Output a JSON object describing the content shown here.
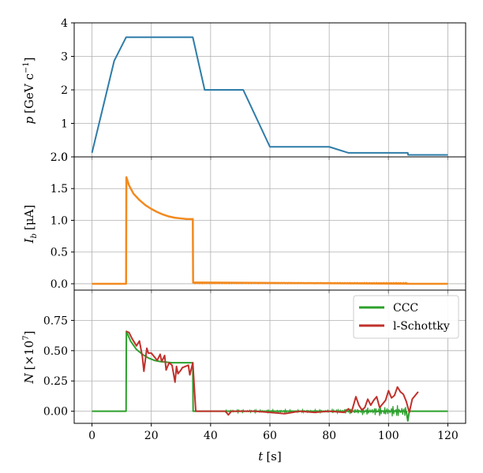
{
  "colors": {
    "momentum": "#2e7ca8",
    "current": "#f28a1f",
    "ccc": "#2ca02c",
    "schottky": "#c0312c",
    "grid": "#b0b0b0"
  },
  "chart_data": [
    {
      "type": "line",
      "id": "momentum",
      "ylabel": "p [GeV c^-1]",
      "ylabel_text": "p [GeV c⁻¹]",
      "xlim": [
        -6,
        126
      ],
      "ylim": [
        0,
        4
      ],
      "yticks": [
        0,
        1,
        2,
        3,
        4
      ],
      "ytick_labels": [
        "0",
        "1",
        "2",
        "3",
        "4"
      ],
      "series": [
        {
          "color_key": "momentum",
          "x": [
            0,
            7.5,
            11.5,
            34,
            38,
            51,
            60,
            80,
            86.5,
            106.5,
            106.6,
            120
          ],
          "y": [
            0.12,
            2.87,
            3.57,
            3.57,
            2.0,
            2.0,
            0.3,
            0.3,
            0.12,
            0.12,
            0.06,
            0.06
          ]
        }
      ]
    },
    {
      "type": "line",
      "id": "current",
      "ylabel": "I_b [μA]",
      "xlim": [
        -6,
        126
      ],
      "ylim": [
        -0.1,
        2.0
      ],
      "yticks": [
        0.0,
        0.5,
        1.0,
        1.5,
        2.0
      ],
      "ytick_labels": [
        "0.0",
        "0.5",
        "1.0",
        "1.5",
        "2.0"
      ],
      "series": [
        {
          "color_key": "current",
          "x": [
            0,
            11.5,
            11.6,
            12.5,
            14,
            16,
            18,
            20,
            22,
            24,
            26,
            28,
            30,
            32,
            34,
            34.1,
            34.2,
            106.5,
            106.6,
            120
          ],
          "y": [
            0,
            0,
            1.68,
            1.55,
            1.42,
            1.32,
            1.24,
            1.18,
            1.13,
            1.09,
            1.06,
            1.04,
            1.03,
            1.02,
            1.02,
            0.02,
            0.02,
            0.0,
            0.0,
            0.0
          ]
        }
      ]
    },
    {
      "type": "line",
      "id": "particles",
      "ylabel": "N [×10^7]",
      "xlabel": "t [s]",
      "xlim": [
        -6,
        126
      ],
      "ylim": [
        -0.1,
        1.0
      ],
      "yticks": [
        0.0,
        0.25,
        0.5,
        0.75
      ],
      "ytick_labels": [
        "0.00",
        "0.25",
        "0.50",
        "0.75"
      ],
      "xticks": [
        0,
        20,
        40,
        60,
        80,
        100,
        120
      ],
      "xtick_labels": [
        "0",
        "20",
        "40",
        "60",
        "80",
        "100",
        "120"
      ],
      "legend_position": "top-right",
      "series": [
        {
          "name": "CCC",
          "color_key": "ccc",
          "x": [
            0,
            11.5,
            11.6,
            13,
            15,
            17,
            19,
            21,
            23,
            25,
            27,
            29,
            31,
            34,
            34.1,
            50,
            60,
            70,
            80,
            90,
            100,
            106,
            106.5,
            107,
            120
          ],
          "y": [
            0,
            0,
            0.66,
            0.58,
            0.51,
            0.47,
            0.44,
            0.42,
            0.41,
            0.405,
            0.4,
            0.4,
            0.4,
            0.4,
            0.0,
            0.0,
            0.0,
            0.0,
            0.0,
            0.0,
            0.0,
            0.0,
            -0.08,
            0.0,
            0.0
          ]
        },
        {
          "name": "l-Schottky",
          "color_key": "schottky",
          "x": [
            11.5,
            12.5,
            13.5,
            15,
            16,
            17,
            17.5,
            18.5,
            19,
            20,
            21,
            22,
            23,
            23.5,
            24.5,
            25,
            26,
            27,
            28,
            28.5,
            29,
            30,
            30.5,
            31.5,
            32.5,
            33,
            34,
            35,
            37,
            45,
            46,
            47,
            50,
            55,
            60,
            65,
            70,
            75,
            80,
            85,
            86.5,
            87.5,
            89,
            90,
            91,
            92,
            93,
            94,
            95,
            96,
            97,
            98,
            99,
            100,
            101,
            102,
            103,
            104,
            105,
            106,
            107,
            108,
            110
          ],
          "y": [
            0.66,
            0.65,
            0.6,
            0.54,
            0.58,
            0.45,
            0.33,
            0.52,
            0.48,
            0.48,
            0.45,
            0.42,
            0.47,
            0.41,
            0.46,
            0.34,
            0.4,
            0.38,
            0.24,
            0.37,
            0.31,
            0.34,
            0.36,
            0.37,
            0.38,
            0.3,
            0.4,
            0.0,
            0.0,
            0.0,
            -0.03,
            0.0,
            0.0,
            0.0,
            -0.01,
            -0.02,
            0.0,
            -0.01,
            0.0,
            -0.01,
            0.02,
            -0.01,
            0.12,
            0.05,
            0.01,
            0.03,
            0.1,
            0.05,
            0.09,
            0.12,
            0.03,
            0.06,
            0.09,
            0.17,
            0.11,
            0.13,
            0.2,
            0.16,
            0.14,
            0.08,
            -0.01,
            0.1,
            0.16
          ]
        }
      ]
    }
  ],
  "axis": {
    "top_ylabel_var": "p",
    "top_ylabel_unit": "[GeV c",
    "top_ylabel_exp": "−1",
    "top_ylabel_close": "]",
    "mid_ylabel_var": "I",
    "mid_ylabel_sub": "b",
    "mid_ylabel_unit": "[μA]",
    "bot_ylabel_var": "N",
    "bot_ylabel_unit": "[×10",
    "bot_ylabel_exp": "7",
    "bot_ylabel_close": "]",
    "xlabel_var": "t",
    "xlabel_unit": "[s]"
  },
  "legend": {
    "items": [
      "CCC",
      "l-Schottky"
    ]
  }
}
